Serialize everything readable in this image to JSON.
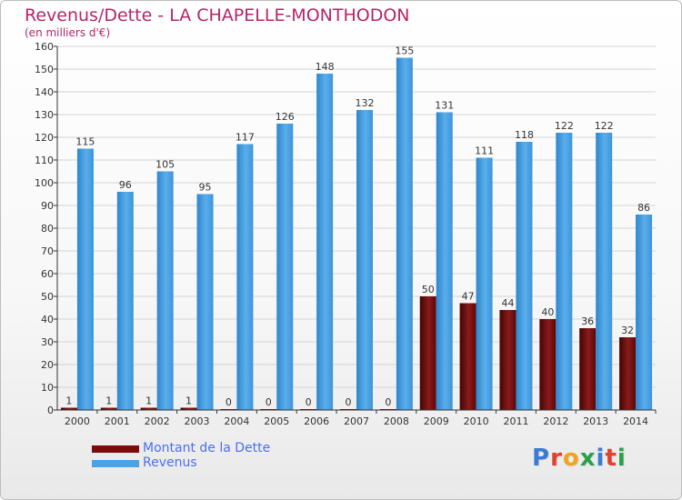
{
  "title": "Revenus/Dette - LA CHAPELLE-MONTHODON",
  "subtitle": "(en milliers d'€)",
  "logo": {
    "text": "Proxiti",
    "letters": [
      "P",
      "r",
      "o",
      "x",
      "i",
      "t",
      "i"
    ],
    "colors": [
      "#3a7bd5",
      "#e0422f",
      "#f0a31b",
      "#2aa04a",
      "#3a7bd5",
      "#e0422f",
      "#2aa04a"
    ]
  },
  "colors": {
    "dette": "#7a0c0c",
    "revenus": "#4aa3e6",
    "grid": "#d4d4d4",
    "axis": "#333333"
  },
  "chart_data": {
    "type": "bar",
    "title": "Revenus/Dette - LA CHAPELLE-MONTHODON",
    "subtitle": "(en milliers d'€)",
    "xlabel": "",
    "ylabel": "",
    "ylim": [
      0,
      160
    ],
    "yticks": [
      0,
      10,
      20,
      30,
      40,
      50,
      60,
      70,
      80,
      90,
      100,
      110,
      120,
      130,
      140,
      150,
      160
    ],
    "grid": true,
    "legend": "bottom-left",
    "categories": [
      "2000",
      "2001",
      "2002",
      "2003",
      "2004",
      "2005",
      "2006",
      "2007",
      "2008",
      "2009",
      "2010",
      "2011",
      "2012",
      "2013",
      "2014"
    ],
    "series": [
      {
        "name": "Montant de la Dette",
        "color": "#7a0c0c",
        "values": [
          1,
          1,
          1,
          1,
          0,
          0,
          0,
          0,
          0,
          50,
          47,
          44,
          40,
          36,
          32
        ]
      },
      {
        "name": "Revenus",
        "color": "#4aa3e6",
        "values": [
          115,
          96,
          105,
          95,
          117,
          126,
          148,
          132,
          155,
          131,
          111,
          118,
          122,
          122,
          86
        ]
      }
    ]
  }
}
